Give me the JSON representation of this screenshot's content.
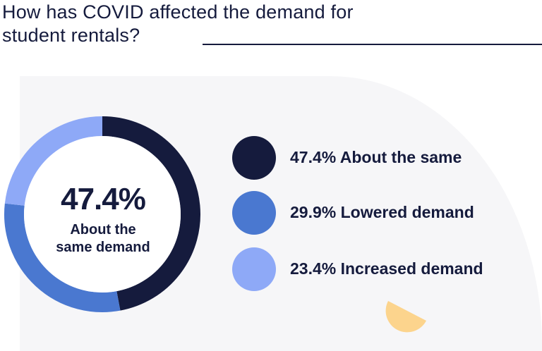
{
  "title": "How has COVID affected the demand for student rentals?",
  "title_lines": [
    "How has COVID affected the demand for",
    "student rentals?"
  ],
  "chart_data": {
    "type": "pie",
    "variant": "donut",
    "title": "How has COVID affected the demand for student rentals?",
    "categories": [
      "About the same",
      "Lowered demand",
      "Increased demand"
    ],
    "values": [
      47.4,
      29.9,
      23.4
    ],
    "unit": "%",
    "colors": [
      "#151b3d",
      "#4a78d0",
      "#8ea9f7"
    ],
    "center_value": "47.4%",
    "center_label_lines": [
      "About the",
      "same demand"
    ],
    "legend": [
      {
        "text": "47.4% About the same",
        "color": "#151b3d"
      },
      {
        "text": "29.9% Lowered demand",
        "color": "#4a78d0"
      },
      {
        "text": "23.4% Increased demand",
        "color": "#8ea9f7"
      }
    ],
    "legend_position": "right"
  },
  "colors": {
    "text": "#151b3d",
    "panel": "#f6f6f8",
    "accent": "#fcd48d"
  }
}
